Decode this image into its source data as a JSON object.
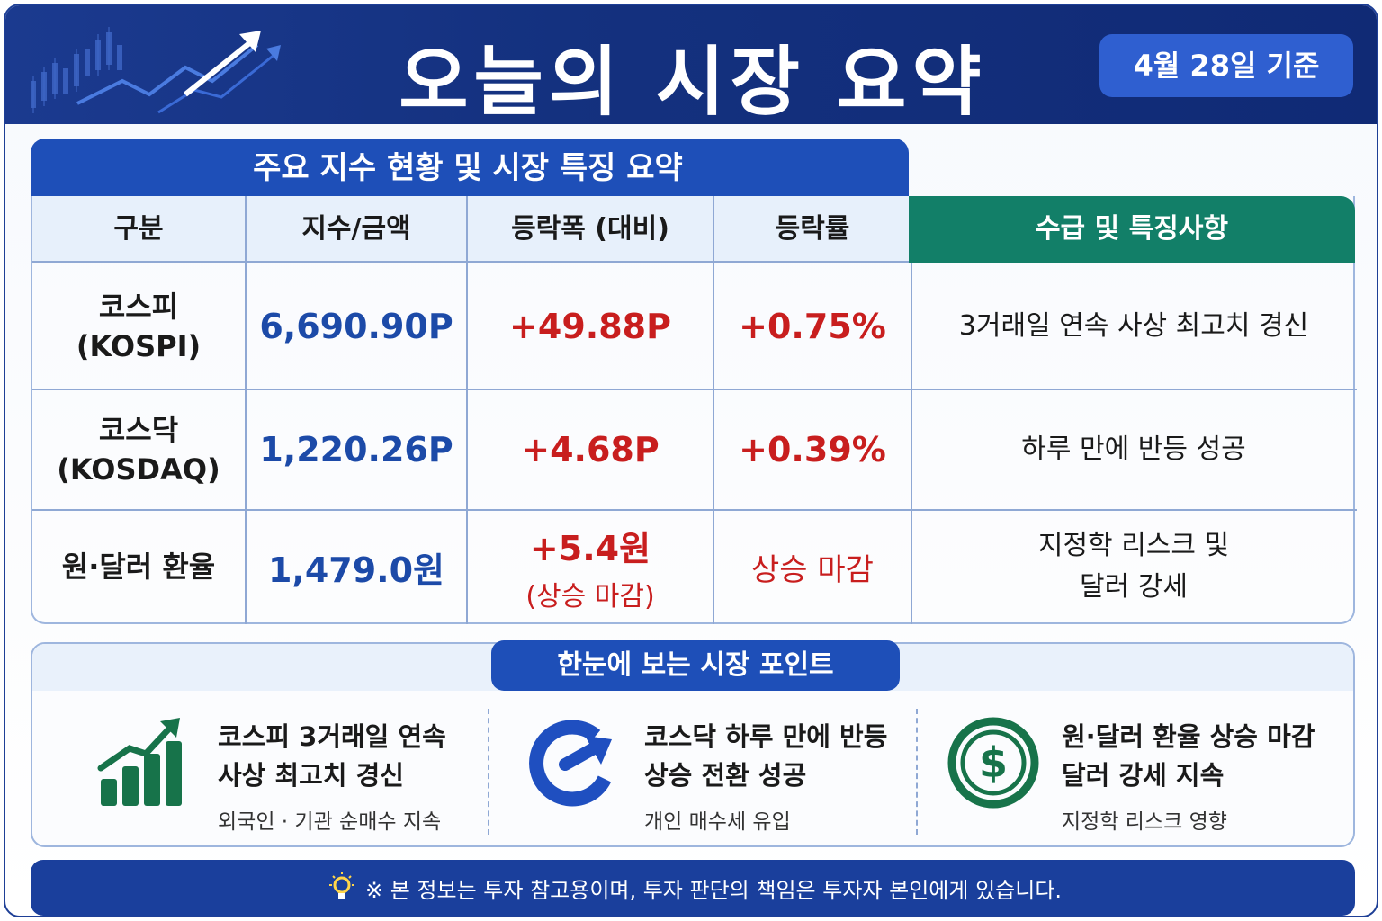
{
  "header": {
    "title": "오늘의 시장 요약",
    "date_badge": "4월 28일 기준"
  },
  "table": {
    "title": "주요 지수 현황 및 시장 특징 요약",
    "columns": [
      "구분",
      "지수/금액",
      "등락폭 (대비)",
      "등락률",
      "수급 및 특징사항"
    ],
    "rows": [
      {
        "name": "코스피",
        "name_en": "(KOSPI)",
        "value": "6,690.90P",
        "change": "+49.88P",
        "change_note": "",
        "rate": "+0.75%",
        "feature_line1": "3거래일 연속 사상 최고치 경신",
        "feature_line2": ""
      },
      {
        "name": "코스닥",
        "name_en": "(KOSDAQ)",
        "value": "1,220.26P",
        "change": "+4.68P",
        "change_note": "",
        "rate": "+0.39%",
        "feature_line1": "하루 만에 반등 성공",
        "feature_line2": ""
      },
      {
        "name": "원·달러 환율",
        "name_en": "",
        "value": "1,479.0원",
        "change": "+5.4원",
        "change_note": "(상승 마감)",
        "rate": "상승 마감",
        "feature_line1": "지정학 리스크 및",
        "feature_line2": "달러 강세"
      }
    ]
  },
  "points": {
    "title": "한눈에 보는 시장 포인트",
    "items": [
      {
        "icon": "bar-chart-up-icon",
        "line1": "코스피 3거래일 연속",
        "line2": "사상 최고치 경신",
        "sub": "외국인 · 기관 순매수 지속"
      },
      {
        "icon": "rebound-arrow-icon",
        "line1": "코스닥 하루 만에 반등",
        "line2": "상승 전환 성공",
        "sub": "개인 매수세 유입"
      },
      {
        "icon": "dollar-icon",
        "line1": "원·달러 환율 상승 마감",
        "line2": "달러 강세 지속",
        "sub": "지정학 리스크 영향"
      }
    ]
  },
  "footer": {
    "icon": "lightbulb-icon",
    "text": "※ 본 정보는 투자 참고용이며, 투자 판단의 책임은 투자자 본인에게 있습니다."
  },
  "colors": {
    "navy": "#14317f",
    "blue": "#1e4fb8",
    "green": "#127f68",
    "value_blue": "#1c4aa8",
    "red": "#c81e1e",
    "icon_green": "#17734a",
    "icon_blue": "#1f4fc0"
  }
}
